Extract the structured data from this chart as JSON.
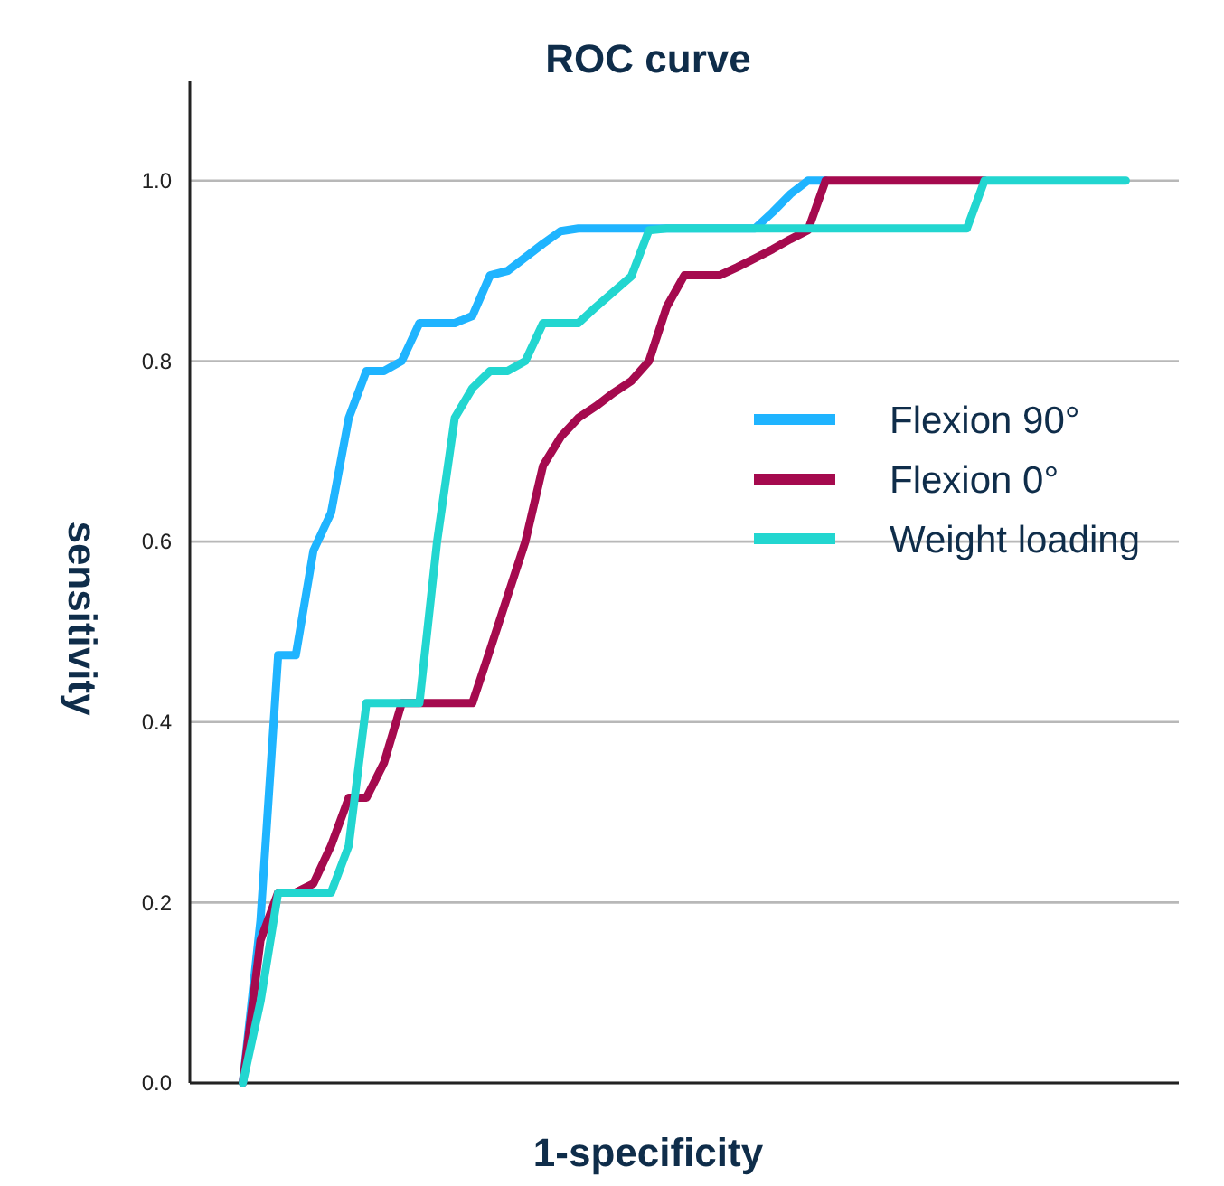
{
  "chart_data": {
    "type": "line",
    "title": "ROC curve",
    "xlabel": "1-specificity",
    "ylabel": "sensitivity",
    "categories": [
      null,
      null,
      null,
      null,
      null,
      null,
      null,
      null,
      null,
      null,
      null,
      null,
      null,
      null,
      null,
      null,
      null,
      null,
      null,
      null,
      null,
      null,
      null,
      null,
      null,
      null,
      null,
      null,
      null,
      null,
      null,
      null,
      null,
      null,
      null,
      null,
      null,
      null,
      null,
      null,
      null,
      null,
      null,
      null,
      null,
      null,
      null,
      null,
      null,
      null,
      null,
      null,
      null,
      null,
      null,
      null,
      null
    ],
    "ylim": [
      0,
      1.11
    ],
    "yticks": [
      {
        "value": 0,
        "label": "0.0"
      },
      {
        "value": 0.2,
        "label": "0.2"
      },
      {
        "value": 0.4,
        "label": "0.4"
      },
      {
        "value": 0.6,
        "label": "0.6"
      },
      {
        "value": 0.8,
        "label": "0.8"
      },
      {
        "value": 1,
        "label": "1.0"
      }
    ],
    "tick_labels": "y",
    "grid": "y",
    "legend": "right",
    "marker": "none",
    "line_style": "solid",
    "series": [
      {
        "name": "Flexion 90°",
        "color": "#1fb4ff",
        "values": [
          null,
          null,
          null,
          0,
          0.18,
          0.474,
          0.474,
          0.59,
          0.632,
          0.737,
          0.789,
          0.789,
          0.8,
          0.842,
          0.842,
          0.842,
          0.85,
          0.895,
          0.9,
          0.915,
          0.93,
          0.944,
          0.947,
          0.947,
          0.947,
          0.947,
          0.947,
          0.947,
          0.947,
          0.947,
          0.947,
          0.947,
          0.947,
          0.965,
          0.985,
          1,
          1,
          null,
          null,
          null,
          null,
          null,
          null,
          null,
          null,
          null,
          null,
          null,
          null,
          null,
          null,
          null,
          null,
          null,
          null,
          null,
          null
        ]
      },
      {
        "name": "Flexion 0°",
        "color": "#a50a4e",
        "values": [
          null,
          null,
          null,
          0,
          0.158,
          0.211,
          0.211,
          0.221,
          0.263,
          0.316,
          0.316,
          0.355,
          0.421,
          0.421,
          0.421,
          0.421,
          0.421,
          0.48,
          0.54,
          0.6,
          0.684,
          0.716,
          0.737,
          0.75,
          0.765,
          0.778,
          0.8,
          0.86,
          0.895,
          0.895,
          0.895,
          0.904,
          0.914,
          0.924,
          0.935,
          0.945,
          1,
          1,
          1,
          1,
          1,
          1,
          1,
          1,
          1,
          1,
          null,
          null,
          null,
          null,
          null,
          null,
          null,
          null,
          null,
          null,
          null
        ]
      },
      {
        "name": "Weight loading",
        "color": "#22d6d0",
        "values": [
          null,
          null,
          null,
          0,
          0.09,
          0.211,
          0.211,
          0.211,
          0.211,
          0.263,
          0.421,
          0.421,
          0.421,
          0.421,
          0.6,
          0.737,
          0.77,
          0.789,
          0.789,
          0.8,
          0.842,
          0.842,
          0.842,
          0.86,
          0.877,
          0.894,
          0.945,
          0.947,
          0.947,
          0.947,
          0.947,
          0.947,
          0.947,
          0.947,
          0.947,
          0.947,
          0.947,
          0.947,
          0.947,
          0.947,
          0.947,
          0.947,
          0.947,
          0.947,
          0.947,
          1,
          1,
          1,
          1,
          1,
          1,
          1,
          1,
          1,
          null,
          null,
          null
        ]
      }
    ]
  }
}
